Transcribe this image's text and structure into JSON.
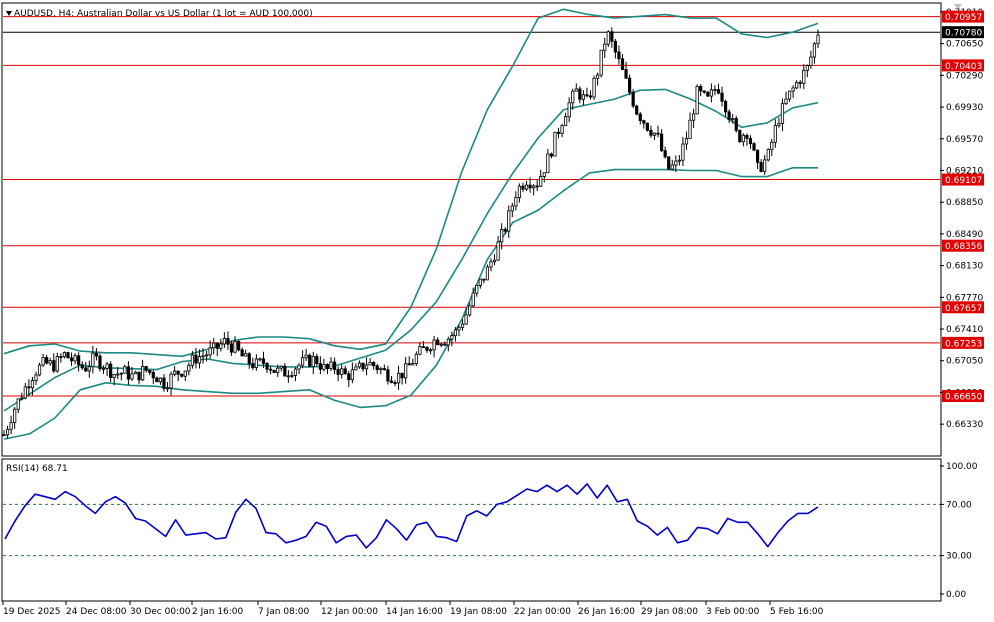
{
  "header": {
    "title": "AUDUSD, H4:  Australian Dollar vs US Dollar (1 lot = AUD 100,000)"
  },
  "colors": {
    "horizontal_line": "#e00000",
    "bollinger": "#1b8a85",
    "rsi_line": "#0000cc",
    "rsi_level": "#1f7a3a",
    "candle": "#000000",
    "price_tag_bg": "#e00000",
    "current_tag_bg": "#000000"
  },
  "chart_data": [
    {
      "type": "candlestick",
      "title": "AUDUSD, H4:  Australian Dollar vs US Dollar (1 lot = AUD 100,000)",
      "ylim": [
        0.6598,
        0.711
      ],
      "y_ticks": [
        "0.71010",
        "0.70650",
        "0.70290",
        "0.69930",
        "0.69570",
        "0.69210",
        "0.68850",
        "0.68490",
        "0.68130",
        "0.67770",
        "0.67410",
        "0.67050",
        "0.66690",
        "0.66330"
      ],
      "x_labels": [
        "19 Dec 2025",
        "24 Dec 08:00",
        "30 Dec 00:00",
        "2 Jan 16:00",
        "7 Jan 08:00",
        "12 Jan 00:00",
        "14 Jan 16:00",
        "19 Jan 08:00",
        "22 Jan 00:00",
        "26 Jan 16:00",
        "29 Jan 08:00",
        "3 Feb 00:00",
        "5 Feb 16:00"
      ],
      "horizontal_lines": [
        "0.70957",
        "0.70403",
        "0.69107",
        "0.68356",
        "0.67657",
        "0.67253",
        "0.66650"
      ],
      "current_price": "0.70780",
      "close_path": [
        0.6621,
        0.665,
        0.6672,
        0.6692,
        0.6702,
        0.67,
        0.6712,
        0.6704,
        0.6696,
        0.6708,
        0.67,
        0.669,
        0.6692,
        0.6686,
        0.6695,
        0.6689,
        0.6679,
        0.669,
        0.6696,
        0.6708,
        0.6712,
        0.6718,
        0.6727,
        0.6719,
        0.6706,
        0.67,
        0.6704,
        0.6693,
        0.6692,
        0.6698,
        0.6704,
        0.6707,
        0.6694,
        0.6698,
        0.6688,
        0.6692,
        0.6703,
        0.6699,
        0.6691,
        0.6686,
        0.6694,
        0.671,
        0.672,
        0.673,
        0.6729,
        0.6738,
        0.6758,
        0.6786,
        0.6805,
        0.6832,
        0.686,
        0.6898,
        0.6911,
        0.6906,
        0.693,
        0.6962,
        0.6992,
        0.7012,
        0.6998,
        0.703,
        0.7078,
        0.705,
        0.7018,
        0.6988,
        0.6972,
        0.696,
        0.6922,
        0.6928,
        0.6962,
        0.701,
        0.7,
        0.7018,
        0.699,
        0.6958,
        0.6966,
        0.6922,
        0.6936,
        0.6978,
        0.7004,
        0.7022,
        0.7038,
        0.7078
      ],
      "bollinger_upper": [
        0.6713,
        0.6722,
        0.6724,
        0.6716,
        0.6714,
        0.6714,
        0.6712,
        0.671,
        0.6718,
        0.6728,
        0.6732,
        0.6732,
        0.673,
        0.6722,
        0.6718,
        0.6724,
        0.6766,
        0.6832,
        0.692,
        0.699,
        0.704,
        0.7094,
        0.7104,
        0.7098,
        0.7094,
        0.7096,
        0.7098,
        0.7094,
        0.7094,
        0.7076,
        0.7072,
        0.7078,
        0.7088
      ],
      "bollinger_middle": [
        0.6648,
        0.6667,
        0.6686,
        0.67,
        0.6697,
        0.6696,
        0.6695,
        0.6704,
        0.6707,
        0.6702,
        0.67,
        0.6698,
        0.6698,
        0.6699,
        0.6708,
        0.6717,
        0.674,
        0.6772,
        0.682,
        0.6872,
        0.6918,
        0.6958,
        0.699,
        0.6996,
        0.7002,
        0.7012,
        0.7013,
        0.7002,
        0.6988,
        0.697,
        0.6975,
        0.6992,
        0.6998
      ],
      "bollinger_lower": [
        0.6616,
        0.6622,
        0.664,
        0.6672,
        0.668,
        0.6677,
        0.6676,
        0.6672,
        0.667,
        0.6668,
        0.6668,
        0.667,
        0.6672,
        0.666,
        0.6652,
        0.6654,
        0.6666,
        0.67,
        0.6752,
        0.682,
        0.6862,
        0.6876,
        0.6898,
        0.6918,
        0.6922,
        0.6922,
        0.6922,
        0.6921,
        0.6921,
        0.6914,
        0.6914,
        0.6924,
        0.6924
      ]
    },
    {
      "type": "line",
      "title": "RSI(14) 68.71",
      "ylim": [
        0,
        100
      ],
      "y_ticks": [
        "100.00",
        "70.00",
        "30.00",
        "0.00"
      ],
      "levels": [
        70,
        30
      ],
      "series": [
        {
          "name": "RSI(14) 68.71",
          "values": [
            43,
            57,
            69,
            78,
            76,
            74,
            80,
            76,
            69,
            63,
            72,
            76,
            71,
            59,
            57,
            51,
            45,
            58,
            46,
            47,
            48,
            43,
            44,
            64,
            74,
            67,
            48,
            47,
            40,
            42,
            45,
            56,
            53,
            40,
            45,
            46,
            36,
            44,
            58,
            51,
            42,
            54,
            56,
            45,
            44,
            41,
            61,
            65,
            61,
            70,
            72,
            77,
            82,
            80,
            85,
            80,
            85,
            78,
            86,
            75,
            85,
            72,
            74,
            57,
            53,
            46,
            52,
            40,
            42,
            52,
            51,
            47,
            59,
            56,
            56,
            47,
            37,
            48,
            57,
            63,
            63,
            68
          ]
        }
      ]
    }
  ]
}
